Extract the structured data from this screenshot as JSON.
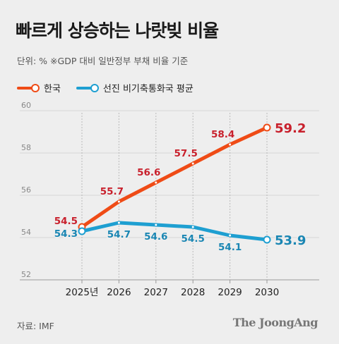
{
  "title": "빠르게 상승하는 나랏빚 비율",
  "unit_note": "단위: %   ※GDP 대비 일반정부 부채 비율 기준",
  "source": "자료: IMF",
  "logo_text": "The JoongAng",
  "colors": {
    "korea": "#ef4b16",
    "advanced": "#1e9fd1",
    "korea_label": "#c8202c",
    "advanced_label": "#1a86b3"
  },
  "chart_data": {
    "type": "line",
    "categories": [
      "2025년",
      "2026",
      "2027",
      "2028",
      "2029",
      "2030"
    ],
    "ylim": [
      52,
      60
    ],
    "yticks": [
      52,
      54,
      56,
      58,
      60
    ],
    "grid": true,
    "legend_position": "top-left",
    "series": [
      {
        "name": "한국",
        "values": [
          54.5,
          55.7,
          56.6,
          57.5,
          58.4,
          59.2
        ]
      },
      {
        "name": "선진 비기축통화국 평균",
        "values": [
          54.3,
          54.7,
          54.6,
          54.5,
          54.1,
          53.9
        ]
      }
    ]
  }
}
